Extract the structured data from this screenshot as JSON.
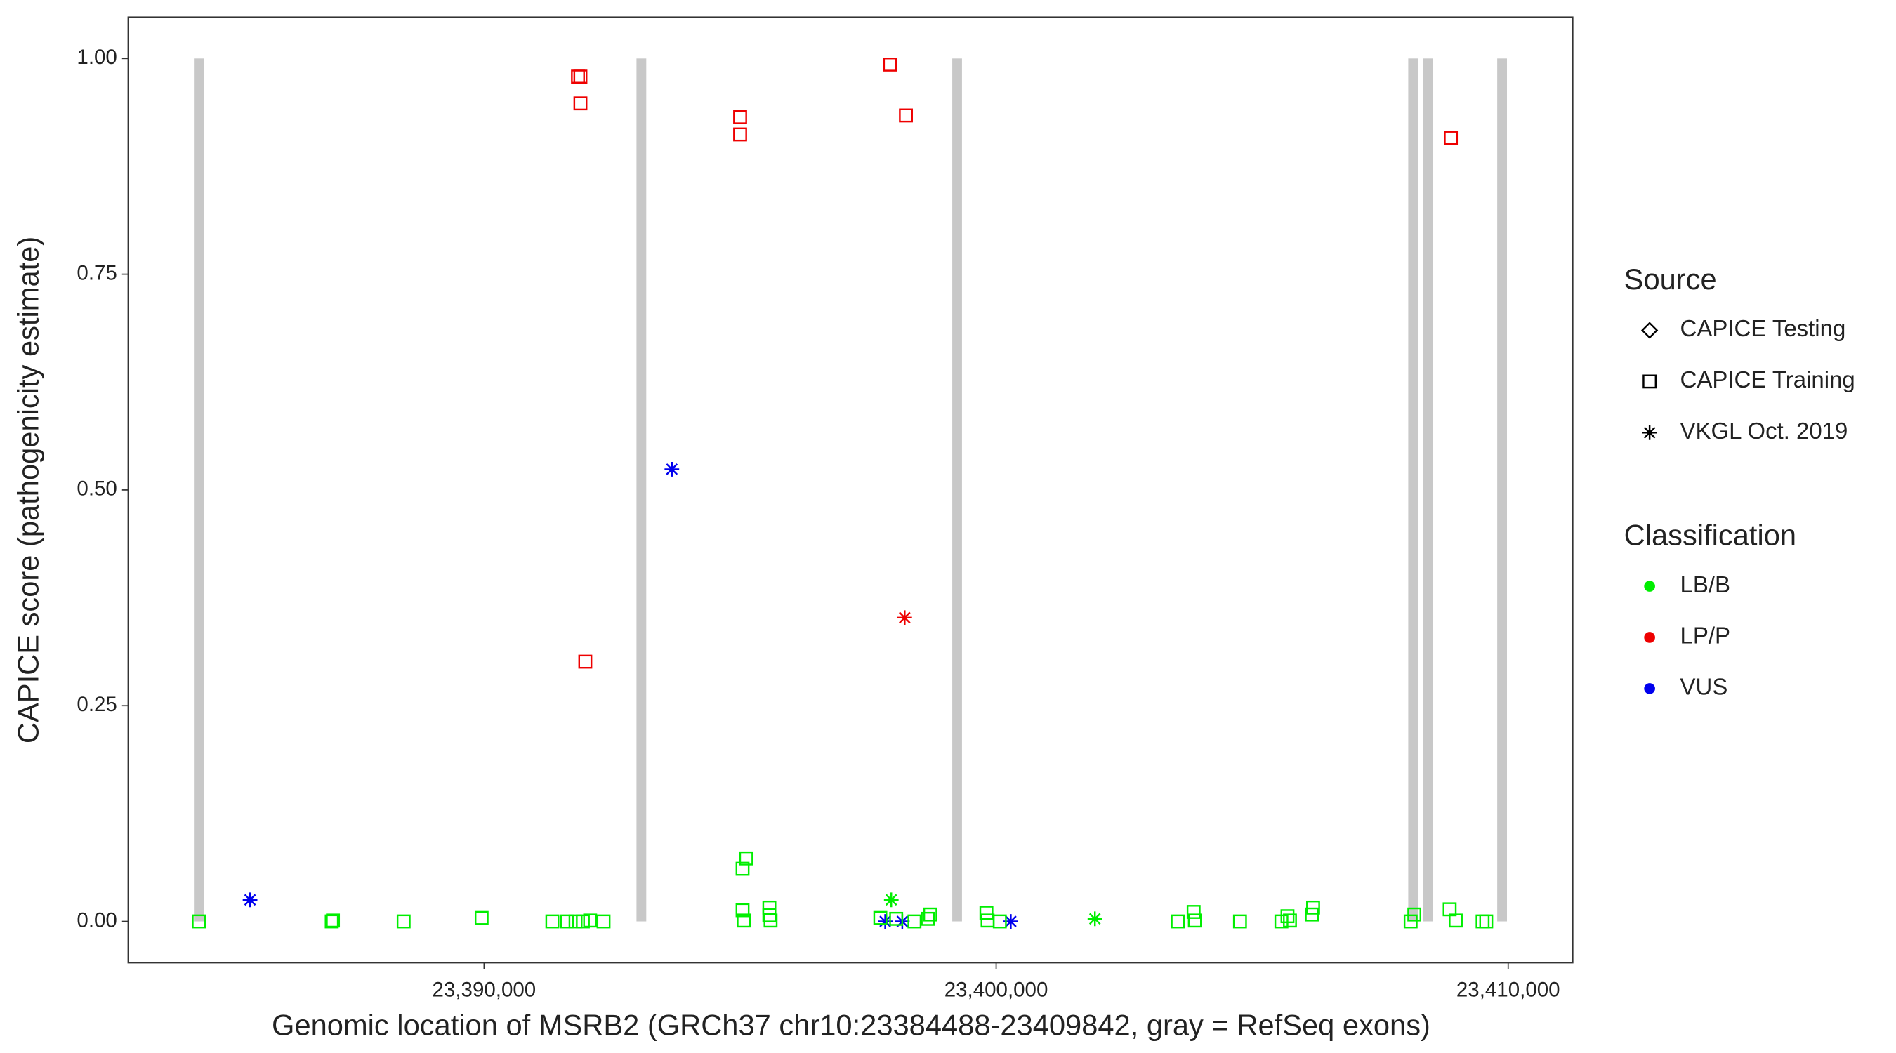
{
  "chart_data": {
    "type": "scatter",
    "x_label": "Genomic location of MSRB2 (GRCh37 chr10:23384488-23409842, gray = RefSeq exons)",
    "y_label": "CAPICE score (pathogenicity estimate)",
    "xlim": [
      23383048,
      23411262
    ],
    "ylim": [
      -0.048,
      1.048
    ],
    "xticks": [
      {
        "value": 23390000,
        "label": "23,390,000"
      },
      {
        "value": 23400000,
        "label": "23,400,000"
      },
      {
        "value": 23410000,
        "label": "23,410,000"
      }
    ],
    "yticks": [
      {
        "value": 0,
        "label": "0.00"
      },
      {
        "value": 0.25,
        "label": "0.25"
      },
      {
        "value": 0.5,
        "label": "0.50"
      },
      {
        "value": 0.75,
        "label": "0.75"
      },
      {
        "value": 1,
        "label": "1.00"
      }
    ],
    "exon_color": "#c8c8c8",
    "exons": [
      [
        23384333,
        23384524
      ],
      [
        23392976,
        23393167
      ],
      [
        23399143,
        23399333
      ],
      [
        23408048,
        23408238
      ],
      [
        23408333,
        23408524
      ],
      [
        23409786,
        23409976
      ]
    ],
    "source_legend": {
      "title": "Source",
      "entries": [
        "CAPICE Testing",
        "CAPICE Training",
        "VKGL Oct. 2019"
      ],
      "shapes": [
        "diamond",
        "square",
        "asterisk"
      ]
    },
    "classification_legend": {
      "title": "Classification",
      "entries": [
        "LB/B",
        "LP/P",
        "VUS"
      ],
      "colors": [
        "#00ee00",
        "#ee0000",
        "#0000ee"
      ]
    },
    "series": [
      {
        "source": 1,
        "classification": 1,
        "x": [
          23391833,
          23391881,
          23391881,
          23391976,
          23395000,
          23395000,
          23397929,
          23398238,
          23408881
        ],
        "y": [
          0.979,
          0.979,
          0.948,
          0.301,
          0.932,
          0.912,
          0.993,
          0.934,
          0.908
        ]
      },
      {
        "source": 2,
        "classification": 1,
        "x": [
          23398214
        ],
        "y": [
          0.352
        ]
      },
      {
        "source": 2,
        "classification": 2,
        "x": [
          23385429,
          23393667,
          23397833,
          23398167,
          23400286
        ],
        "y": [
          0.025,
          0.524,
          0,
          0,
          0
        ]
      },
      {
        "source": 1,
        "classification": 0,
        "x": [
          23384429,
          23387024,
          23387048,
          23388429,
          23389952,
          23391333,
          23391619,
          23391786,
          23391929,
          23392071,
          23392333,
          23395048,
          23395119,
          23395048,
          23395071,
          23395571,
          23395571,
          23395595,
          23397738,
          23398048,
          23398405,
          23398667,
          23398714,
          23399810,
          23399833,
          23400071,
          23403548,
          23403857,
          23403881,
          23404762,
          23405571,
          23405690,
          23405738,
          23406167,
          23406190,
          23408095,
          23408167,
          23408857,
          23408976,
          23409500,
          23409571
        ],
        "y": [
          0,
          0,
          0.001,
          0,
          0.004,
          0,
          0,
          0,
          0,
          0.001,
          0,
          0.061,
          0.073,
          0.013,
          0.001,
          0.016,
          0.007,
          0.001,
          0.004,
          0.003,
          0,
          0.003,
          0.008,
          0.01,
          0.001,
          0,
          0,
          0.011,
          0.001,
          0,
          0,
          0.006,
          0.001,
          0.008,
          0.016,
          0,
          0.008,
          0.014,
          0.001,
          0,
          0
        ]
      },
      {
        "source": 2,
        "classification": 0,
        "x": [
          23397952,
          23401929
        ],
        "y": [
          0.025,
          0.003
        ]
      }
    ]
  }
}
